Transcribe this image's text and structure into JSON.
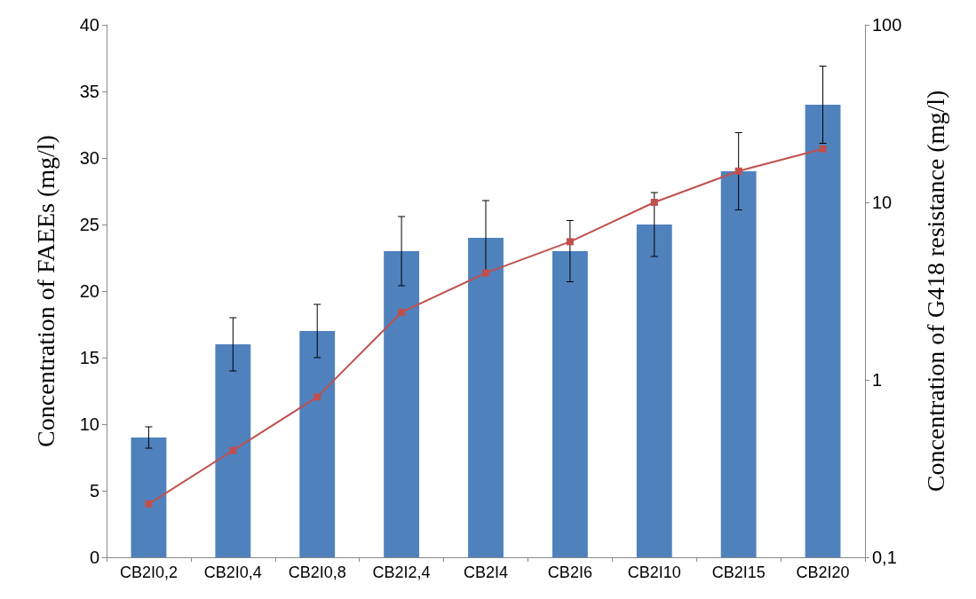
{
  "chart_data": {
    "type": "bar",
    "ylabel": "Concentration of FAEEs (mg/l)",
    "y2label": "Concentration of G418 resistance (mg/l)",
    "categories": [
      "CB2I0,2",
      "CB2I0,4",
      "CB2I0,8",
      "CB2I2,4",
      "CB2I4",
      "CB2I6",
      "CB2I10",
      "CB2I15",
      "CB2I20"
    ],
    "series": [
      {
        "color": "#4f81bd",
        "values": [
          9,
          16,
          17,
          23,
          24,
          23,
          25,
          29,
          34
        ],
        "errors": [
          0.8,
          2,
          2,
          2.6,
          2.8,
          2.3,
          2.4,
          2.9,
          2.9
        ]
      },
      {
        "type": "line",
        "axis": "y2",
        "color": "#c0504d",
        "marker": "square",
        "values": [
          0.2,
          0.4,
          0.8,
          2.4,
          4,
          6,
          10,
          15,
          20
        ]
      }
    ],
    "ylim": [
      0,
      40
    ],
    "yticks": [
      0,
      5,
      10,
      15,
      20,
      25,
      30,
      35,
      40
    ],
    "y2lim": [
      0.1,
      100
    ],
    "y2ticks": [
      {
        "value": 0.1,
        "label": "0,1"
      },
      {
        "value": 1,
        "label": "1"
      },
      {
        "value": 10,
        "label": "10"
      },
      {
        "value": 100,
        "label": "100"
      }
    ],
    "log": "y2",
    "grid": false
  }
}
